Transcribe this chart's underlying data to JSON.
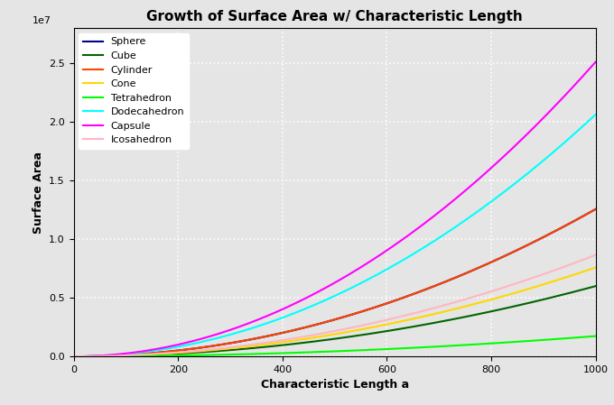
{
  "title": "Growth of Surface Area w/ Characteristic Length",
  "xlabel": "Characteristic Length a",
  "ylabel": "Surface Area",
  "xlim": [
    0,
    1000
  ],
  "ylim": [
    0,
    28000000.0
  ],
  "a_max": 1000,
  "n_points": 1000,
  "series": [
    {
      "name": "Sphere",
      "color": "#00008B",
      "formula": "sphere"
    },
    {
      "name": "Cube",
      "color": "#006400",
      "formula": "cube"
    },
    {
      "name": "Cylinder",
      "color": "#FF4500",
      "formula": "cylinder"
    },
    {
      "name": "Cone",
      "color": "#FFD700",
      "formula": "cone"
    },
    {
      "name": "Tetrahedron",
      "color": "#00FF00",
      "formula": "tetrahedron"
    },
    {
      "name": "Dodecahedron",
      "color": "#00FFFF",
      "formula": "dodecahedron"
    },
    {
      "name": "Capsule",
      "color": "#FF00FF",
      "formula": "capsule"
    },
    {
      "name": "Icosahedron",
      "color": "#FFB6C1",
      "formula": "icosahedron"
    }
  ],
  "background_color": "#E5E5E5",
  "grid_color": "white",
  "title_fontsize": 11,
  "label_fontsize": 9,
  "tick_fontsize": 8,
  "legend_fontsize": 8,
  "linewidth": 1.5
}
